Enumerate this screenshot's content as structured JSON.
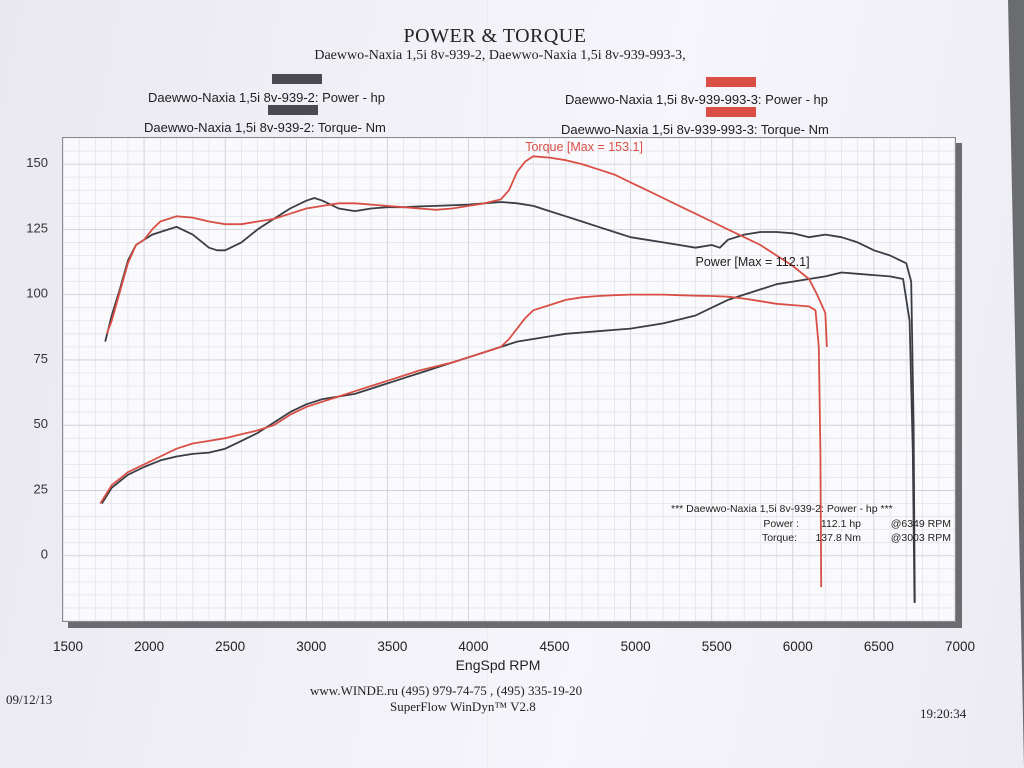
{
  "page": {
    "title": "POWER & TORQUE",
    "subtitle": "Daewwo-Naxia 1,5i 8v-939-2, Daewwo-Naxia 1,5i 8v-939-993-3,",
    "date": "09/12/13",
    "time": "19:20:34",
    "website": "www.WINDE.ru  (495) 979-74-75 , (495) 335-19-20",
    "software": "SuperFlow WinDyn™ V2.8"
  },
  "legend": {
    "power_1": "Daewwo-Naxia 1,5i 8v-939-2: Power -  hp",
    "torque_1": "Daewwo-Naxia 1,5i 8v-939-2: Torque-  Nm",
    "power_2": "Daewwo-Naxia 1,5i 8v-939-993-3: Power -  hp",
    "torque_2": "Daewwo-Naxia 1,5i 8v-939-993-3: Torque-  Nm"
  },
  "info_box": {
    "header": "*** Daewwo-Naxia 1,5i 8v-939-2: Power -  hp   ***",
    "power_label": "Power :",
    "power_value": "112.1 hp",
    "power_rpm": "@6349 RPM",
    "torque_label": "Torque:",
    "torque_value": "137.8 Nm",
    "torque_rpm": "@3003 RPM"
  },
  "chart_data": {
    "type": "line",
    "title": "POWER & TORQUE",
    "xlabel": "EngSpd  RPM",
    "ylabel": "",
    "xlim": [
      1500,
      7000
    ],
    "ylim": [
      -25,
      160
    ],
    "x_ticks": [
      1500,
      2000,
      2500,
      3000,
      3500,
      4000,
      4500,
      5000,
      5500,
      6000,
      6500,
      7000
    ],
    "y_ticks": [
      0,
      25,
      50,
      75,
      100,
      125,
      150
    ],
    "grid": true,
    "annotations": [
      {
        "text": "Torque [Max = 153.1]",
        "x": 4350,
        "y": 155,
        "color": "#d94f45"
      },
      {
        "text": "Power  [Max = 112.1]",
        "x": 5400,
        "y": 111,
        "color": "#222222"
      }
    ],
    "series": [
      {
        "name": "Daewwo-Naxia 1,5i 8v-939-2: Power -  hp",
        "color": "#3a3d44",
        "points": [
          [
            1740,
            20
          ],
          [
            1800,
            26
          ],
          [
            1900,
            31
          ],
          [
            2000,
            34
          ],
          [
            2100,
            36.5
          ],
          [
            2200,
            38
          ],
          [
            2300,
            39
          ],
          [
            2400,
            39.5
          ],
          [
            2500,
            41
          ],
          [
            2600,
            44
          ],
          [
            2700,
            47
          ],
          [
            2800,
            51
          ],
          [
            2900,
            55
          ],
          [
            3000,
            58
          ],
          [
            3100,
            60
          ],
          [
            3200,
            61
          ],
          [
            3300,
            62
          ],
          [
            3400,
            64
          ],
          [
            3500,
            66
          ],
          [
            3600,
            68
          ],
          [
            3700,
            70
          ],
          [
            3800,
            72
          ],
          [
            3900,
            74
          ],
          [
            4000,
            76
          ],
          [
            4100,
            78
          ],
          [
            4200,
            80
          ],
          [
            4300,
            82
          ],
          [
            4400,
            83
          ],
          [
            4500,
            84
          ],
          [
            4600,
            85
          ],
          [
            4700,
            85.5
          ],
          [
            4800,
            86
          ],
          [
            4900,
            86.5
          ],
          [
            5000,
            87
          ],
          [
            5100,
            88
          ],
          [
            5200,
            89
          ],
          [
            5300,
            90.5
          ],
          [
            5400,
            92
          ],
          [
            5500,
            95
          ],
          [
            5600,
            98
          ],
          [
            5700,
            100
          ],
          [
            5800,
            102
          ],
          [
            5900,
            104
          ],
          [
            6000,
            105
          ],
          [
            6100,
            106
          ],
          [
            6200,
            107
          ],
          [
            6300,
            108.5
          ],
          [
            6400,
            108
          ],
          [
            6500,
            107.5
          ],
          [
            6600,
            107
          ],
          [
            6680,
            106
          ],
          [
            6720,
            90
          ],
          [
            6740,
            40
          ],
          [
            6750,
            -18
          ]
        ]
      },
      {
        "name": "Daewwo-Naxia 1,5i 8v-939-2: Torque-  Nm",
        "color": "#3a3d44",
        "points": [
          [
            1760,
            82
          ],
          [
            1800,
            92
          ],
          [
            1850,
            102
          ],
          [
            1900,
            113
          ],
          [
            1950,
            119
          ],
          [
            2000,
            121
          ],
          [
            2050,
            123
          ],
          [
            2100,
            124
          ],
          [
            2200,
            126
          ],
          [
            2300,
            123
          ],
          [
            2400,
            118
          ],
          [
            2450,
            117
          ],
          [
            2500,
            117
          ],
          [
            2600,
            120
          ],
          [
            2700,
            125
          ],
          [
            2800,
            129
          ],
          [
            2900,
            133
          ],
          [
            3000,
            136
          ],
          [
            3050,
            137
          ],
          [
            3100,
            136
          ],
          [
            3200,
            133
          ],
          [
            3300,
            132
          ],
          [
            3400,
            133
          ],
          [
            3500,
            133.5
          ],
          [
            3600,
            133.5
          ],
          [
            3700,
            133.8
          ],
          [
            3800,
            134
          ],
          [
            4000,
            134.5
          ],
          [
            4100,
            135
          ],
          [
            4200,
            135.5
          ],
          [
            4300,
            135
          ],
          [
            4400,
            134
          ],
          [
            4500,
            132
          ],
          [
            4600,
            130
          ],
          [
            4700,
            128
          ],
          [
            4800,
            126
          ],
          [
            4900,
            124
          ],
          [
            5000,
            122
          ],
          [
            5100,
            121
          ],
          [
            5200,
            120
          ],
          [
            5300,
            119
          ],
          [
            5400,
            118
          ],
          [
            5500,
            119
          ],
          [
            5550,
            118
          ],
          [
            5600,
            121
          ],
          [
            5700,
            123
          ],
          [
            5800,
            124
          ],
          [
            5900,
            124
          ],
          [
            6000,
            123.5
          ],
          [
            6100,
            122
          ],
          [
            6200,
            123
          ],
          [
            6300,
            122
          ],
          [
            6400,
            120
          ],
          [
            6500,
            117
          ],
          [
            6600,
            115
          ],
          [
            6700,
            112
          ],
          [
            6730,
            105
          ],
          [
            6745,
            50
          ],
          [
            6752,
            -18
          ]
        ]
      },
      {
        "name": "Daewwo-Naxia 1,5i 8v-939-993-3: Power -  hp",
        "color": "#d94f45",
        "points": [
          [
            1730,
            20
          ],
          [
            1800,
            27
          ],
          [
            1900,
            32
          ],
          [
            2000,
            35
          ],
          [
            2100,
            38
          ],
          [
            2200,
            41
          ],
          [
            2300,
            43
          ],
          [
            2400,
            44
          ],
          [
            2500,
            45
          ],
          [
            2600,
            46.5
          ],
          [
            2700,
            48
          ],
          [
            2800,
            50
          ],
          [
            2900,
            54
          ],
          [
            3000,
            57
          ],
          [
            3100,
            59
          ],
          [
            3200,
            61
          ],
          [
            3300,
            63
          ],
          [
            3400,
            65
          ],
          [
            3500,
            67
          ],
          [
            3600,
            69
          ],
          [
            3700,
            71
          ],
          [
            3800,
            72.5
          ],
          [
            3900,
            74
          ],
          [
            4000,
            76
          ],
          [
            4100,
            78
          ],
          [
            4200,
            80
          ],
          [
            4250,
            83
          ],
          [
            4300,
            87
          ],
          [
            4350,
            91
          ],
          [
            4400,
            94
          ],
          [
            4500,
            96
          ],
          [
            4600,
            98
          ],
          [
            4700,
            99
          ],
          [
            4800,
            99.5
          ],
          [
            4900,
            99.8
          ],
          [
            5000,
            100
          ],
          [
            5100,
            100
          ],
          [
            5200,
            100
          ],
          [
            5300,
            99.8
          ],
          [
            5400,
            99.6
          ],
          [
            5500,
            99.5
          ],
          [
            5600,
            99.2
          ],
          [
            5700,
            98.5
          ],
          [
            5800,
            97.5
          ],
          [
            5900,
            96.5
          ],
          [
            6000,
            96
          ],
          [
            6100,
            95.5
          ],
          [
            6140,
            94
          ],
          [
            6160,
            80
          ],
          [
            6170,
            40
          ],
          [
            6175,
            -12
          ]
        ]
      },
      {
        "name": "Daewwo-Naxia 1,5i 8v-939-993-3: Torque-  Nm",
        "color": "#d94f45",
        "points": [
          [
            1770,
            85
          ],
          [
            1800,
            90
          ],
          [
            1850,
            101
          ],
          [
            1900,
            112
          ],
          [
            1950,
            119
          ],
          [
            2000,
            121
          ],
          [
            2050,
            125
          ],
          [
            2100,
            128
          ],
          [
            2200,
            130
          ],
          [
            2300,
            129.5
          ],
          [
            2400,
            128
          ],
          [
            2500,
            127
          ],
          [
            2600,
            127
          ],
          [
            2700,
            128
          ],
          [
            2800,
            129
          ],
          [
            2900,
            131
          ],
          [
            3000,
            133
          ],
          [
            3100,
            134
          ],
          [
            3200,
            135
          ],
          [
            3300,
            135
          ],
          [
            3400,
            134.5
          ],
          [
            3500,
            134
          ],
          [
            3600,
            133.5
          ],
          [
            3700,
            133
          ],
          [
            3800,
            132.5
          ],
          [
            3900,
            133
          ],
          [
            4000,
            134
          ],
          [
            4100,
            135
          ],
          [
            4200,
            136.5
          ],
          [
            4250,
            140
          ],
          [
            4300,
            147
          ],
          [
            4350,
            151
          ],
          [
            4400,
            153
          ],
          [
            4500,
            152.5
          ],
          [
            4600,
            151.5
          ],
          [
            4700,
            150
          ],
          [
            4800,
            148
          ],
          [
            4900,
            146
          ],
          [
            5000,
            143
          ],
          [
            5100,
            140
          ],
          [
            5200,
            137
          ],
          [
            5300,
            134
          ],
          [
            5400,
            131
          ],
          [
            5500,
            128
          ],
          [
            5600,
            125
          ],
          [
            5700,
            122
          ],
          [
            5800,
            119
          ],
          [
            5900,
            115
          ],
          [
            6000,
            111
          ],
          [
            6100,
            106
          ],
          [
            6150,
            100
          ],
          [
            6200,
            93
          ],
          [
            6210,
            80
          ]
        ]
      }
    ]
  }
}
